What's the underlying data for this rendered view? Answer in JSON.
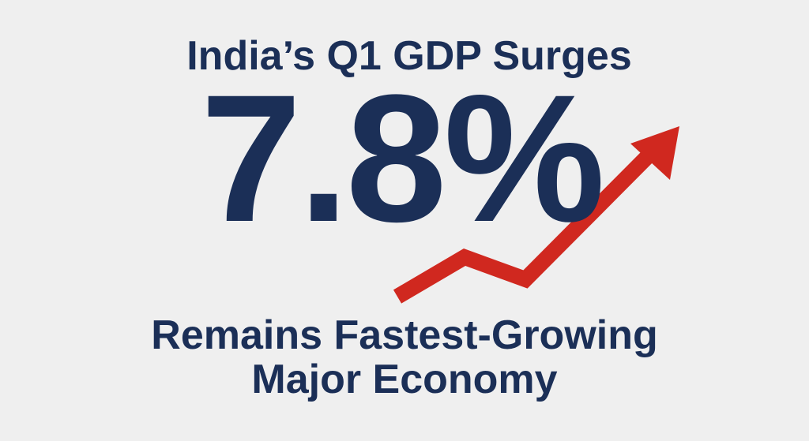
{
  "headline": "India’s Q1 GDP Surges",
  "figure": "7.8%",
  "subheadline": [
    "Remains Fastest-Growing",
    "Major Economy"
  ]
}
